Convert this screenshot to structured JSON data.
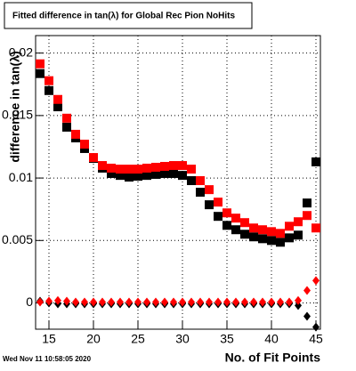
{
  "chart_data": {
    "type": "scatter",
    "title": "Fitted difference in tan(λ) for Global Rec Pion NoHits",
    "x_label": "No. of Fit Points",
    "y_label": "difference in tan(λ)",
    "timestamp": "Wed Nov 11 10:58:05 2020",
    "x": [
      14,
      15,
      16,
      17,
      18,
      19,
      20,
      21,
      22,
      23,
      24,
      25,
      26,
      27,
      28,
      29,
      30,
      31,
      32,
      33,
      34,
      35,
      36,
      37,
      38,
      39,
      40,
      41,
      42,
      43,
      44,
      45
    ],
    "xlim": [
      13.5,
      45.5
    ],
    "xticks": [
      15,
      20,
      25,
      30,
      35,
      40,
      45
    ],
    "ylim": [
      -0.0021,
      0.0214
    ],
    "yticks": [
      0,
      0.005,
      0.01,
      0.015,
      0.02
    ],
    "grid": true,
    "series": [
      {
        "color": "#000000",
        "marker": "square",
        "values": [
          0.01836,
          0.017,
          0.0157,
          0.01407,
          0.01321,
          0.01236,
          0.01157,
          0.01079,
          0.01036,
          0.01021,
          0.01007,
          0.01014,
          0.01021,
          0.01029,
          0.01036,
          0.01036,
          0.01021,
          0.00979,
          0.00886,
          0.00786,
          0.00693,
          0.00621,
          0.00586,
          0.0055,
          0.00529,
          0.00514,
          0.005,
          0.00486,
          0.00521,
          0.00543,
          0.008,
          0.01129
        ]
      },
      {
        "color": "#ff0000",
        "marker": "square",
        "values": [
          0.01914,
          0.01779,
          0.01629,
          0.01479,
          0.0135,
          0.01271,
          0.01164,
          0.011,
          0.01079,
          0.01071,
          0.01071,
          0.01071,
          0.01079,
          0.01086,
          0.01093,
          0.011,
          0.011,
          0.01071,
          0.00979,
          0.00907,
          0.00807,
          0.00721,
          0.00679,
          0.00643,
          0.006,
          0.00586,
          0.00571,
          0.00557,
          0.00614,
          0.0065,
          0.007,
          0.006
        ]
      },
      {
        "color": "#000000",
        "marker": "diamond",
        "values": [
          0.00014,
          0.0,
          -7e-05,
          -7e-05,
          -7e-05,
          -7e-05,
          -7e-05,
          -7e-05,
          -7e-05,
          -7e-05,
          -7e-05,
          -7e-05,
          -7e-05,
          -7e-05,
          -7e-05,
          -7e-05,
          -7e-05,
          -7e-05,
          -7e-05,
          -7e-05,
          -7e-05,
          -7e-05,
          -7e-05,
          -7e-05,
          -7e-05,
          -7e-05,
          -7e-05,
          -7e-05,
          -7e-05,
          -0.0002,
          -0.00107,
          -0.00193
        ]
      },
      {
        "color": "#ff0000",
        "marker": "diamond",
        "values": [
          7e-05,
          0.00014,
          0.0002,
          0.00014,
          7e-05,
          7e-05,
          7e-05,
          7e-05,
          7e-05,
          7e-05,
          7e-05,
          7e-05,
          7e-05,
          7e-05,
          7e-05,
          7e-05,
          7e-05,
          7e-05,
          7e-05,
          7e-05,
          7e-05,
          7e-05,
          7e-05,
          7e-05,
          7e-05,
          7e-05,
          7e-05,
          7e-05,
          7e-05,
          0.0002,
          0.001,
          0.00179
        ]
      }
    ]
  }
}
